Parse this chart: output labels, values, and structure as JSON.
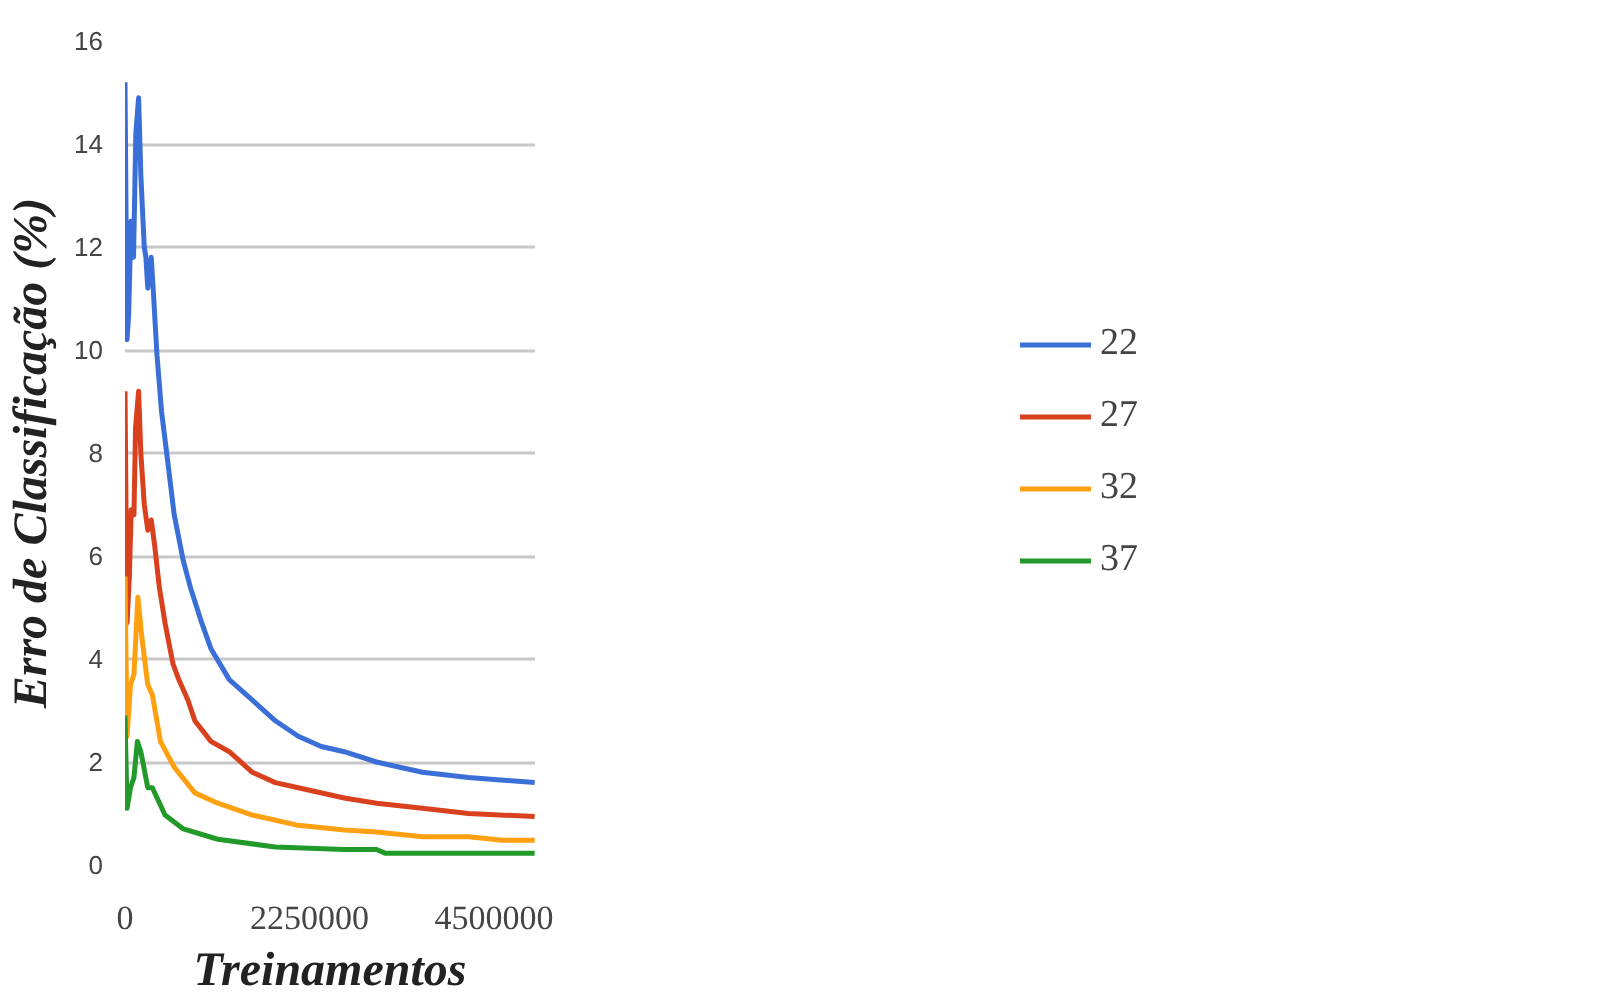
{
  "chart_data": {
    "type": "line",
    "xlabel": "Treinamentos",
    "ylabel": "Erro de Classificação (%)",
    "xlim": [
      0,
      5000000
    ],
    "xticks": [
      0,
      2250000,
      4500000
    ],
    "ylim": [
      0,
      16
    ],
    "yticks": [
      0,
      2,
      4,
      6,
      8,
      10,
      12,
      14,
      16
    ],
    "grid": "y",
    "legend": "right",
    "marker": "none",
    "line_style": "solid",
    "series": [
      {
        "name": "22",
        "color": "#3a6fd8",
        "x": [
          0,
          25000,
          45000,
          73000,
          104000,
          132000,
          166000,
          193000,
          235000,
          255000,
          278000,
          320000,
          347000,
          390000,
          446000,
          516000,
          600000,
          712000,
          796000,
          936000,
          1048000,
          1272000,
          1553000,
          1833000,
          2113000,
          2394000,
          2674000,
          3067000,
          3627000,
          4188000,
          4996000
        ],
        "values": [
          15.2,
          10.2,
          10.7,
          12.5,
          11.8,
          14.2,
          14.9,
          13.4,
          12.0,
          11.8,
          11.2,
          11.8,
          11.1,
          9.9,
          8.8,
          7.9,
          6.8,
          5.9,
          5.4,
          4.7,
          4.2,
          3.6,
          3.2,
          2.8,
          2.5,
          2.3,
          2.2,
          2.0,
          1.8,
          1.7,
          1.6
        ]
      },
      {
        "name": "27",
        "color": "#d9411e",
        "x": [
          0,
          25000,
          53000,
          76000,
          109000,
          129000,
          166000,
          193000,
          235000,
          278000,
          320000,
          362000,
          418000,
          488000,
          586000,
          656000,
          768000,
          852000,
          1048000,
          1272000,
          1553000,
          1833000,
          2113000,
          2674000,
          3067000,
          3627000,
          4188000,
          4996000
        ],
        "values": [
          9.2,
          4.7,
          5.6,
          6.9,
          6.8,
          8.5,
          9.2,
          8.0,
          7.0,
          6.5,
          6.7,
          6.2,
          5.4,
          4.7,
          3.9,
          3.6,
          3.2,
          2.8,
          2.4,
          2.2,
          1.8,
          1.6,
          1.5,
          1.3,
          1.2,
          1.1,
          1.0,
          0.94
        ]
      },
      {
        "name": "32",
        "color": "#ffa010",
        "x": [
          0,
          25000,
          67000,
          109000,
          157000,
          207000,
          278000,
          334000,
          432000,
          600000,
          852000,
          1132000,
          1553000,
          2113000,
          2674000,
          3067000,
          3627000,
          4188000,
          4608000,
          4996000
        ],
        "values": [
          5.6,
          2.5,
          3.5,
          3.7,
          5.2,
          4.4,
          3.5,
          3.3,
          2.4,
          1.9,
          1.4,
          1.2,
          0.97,
          0.77,
          0.68,
          0.64,
          0.55,
          0.55,
          0.48,
          0.48
        ]
      },
      {
        "name": "37",
        "color": "#229a2a",
        "x": [
          0,
          25000,
          67000,
          109000,
          151000,
          193000,
          278000,
          334000,
          488000,
          712000,
          1132000,
          1833000,
          2674000,
          3067000,
          3171000,
          4996000
        ],
        "values": [
          2.9,
          1.1,
          1.5,
          1.7,
          2.4,
          2.2,
          1.5,
          1.5,
          0.97,
          0.7,
          0.5,
          0.35,
          0.3,
          0.3,
          0.23,
          0.23
        ]
      }
    ]
  }
}
